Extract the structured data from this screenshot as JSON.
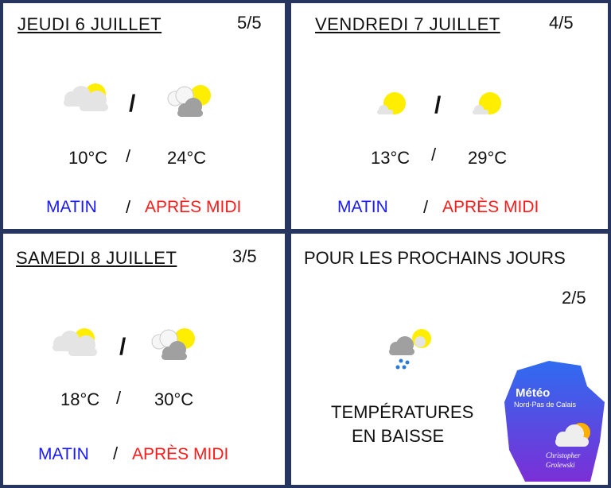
{
  "days": [
    {
      "title": "JEUDI 6 JUILLET",
      "score": "5/5",
      "morning_icon": "sun-behind-light-clouds-icon",
      "afternoon_icon": "sun-behind-grey-clouds-icon",
      "temp_morning": "10°C",
      "temp_afternoon": "24°C",
      "morning_label": "MATIN",
      "afternoon_label": "APRÈS MIDI",
      "sep": "/"
    },
    {
      "title": "VENDREDI 7 JUILLET",
      "score": "4/5",
      "morning_icon": "sun-small-cloud-icon",
      "afternoon_icon": "sun-small-cloud-icon",
      "temp_morning": "13°C",
      "temp_afternoon": "29°C",
      "morning_label": "MATIN",
      "afternoon_label": "APRÈS MIDI",
      "sep": "/"
    },
    {
      "title": "SAMEDI 8 JUILLET",
      "score": "3/5",
      "morning_icon": "sun-behind-light-clouds-icon",
      "afternoon_icon": "sun-behind-grey-clouds-icon",
      "temp_morning": "18°C",
      "temp_afternoon": "30°C",
      "morning_label": "MATIN",
      "afternoon_label": "APRÈS MIDI",
      "sep": "/"
    }
  ],
  "outlook": {
    "title": "POUR LES PROCHAINS JOURS",
    "score": "2/5",
    "icon": "sun-cloud-rain-icon",
    "line1": "TEMPÉRATURES",
    "line2": "EN BAISSE"
  },
  "logo": {
    "title": "Météo",
    "subtitle": "Nord-Pas de Calais",
    "author1": "Christopher",
    "author2": "Grolewski"
  },
  "colors": {
    "background": "#26365f",
    "morning": "#1a1aff",
    "afternoon": "#ff1a1a",
    "sun": "#ffee00"
  }
}
